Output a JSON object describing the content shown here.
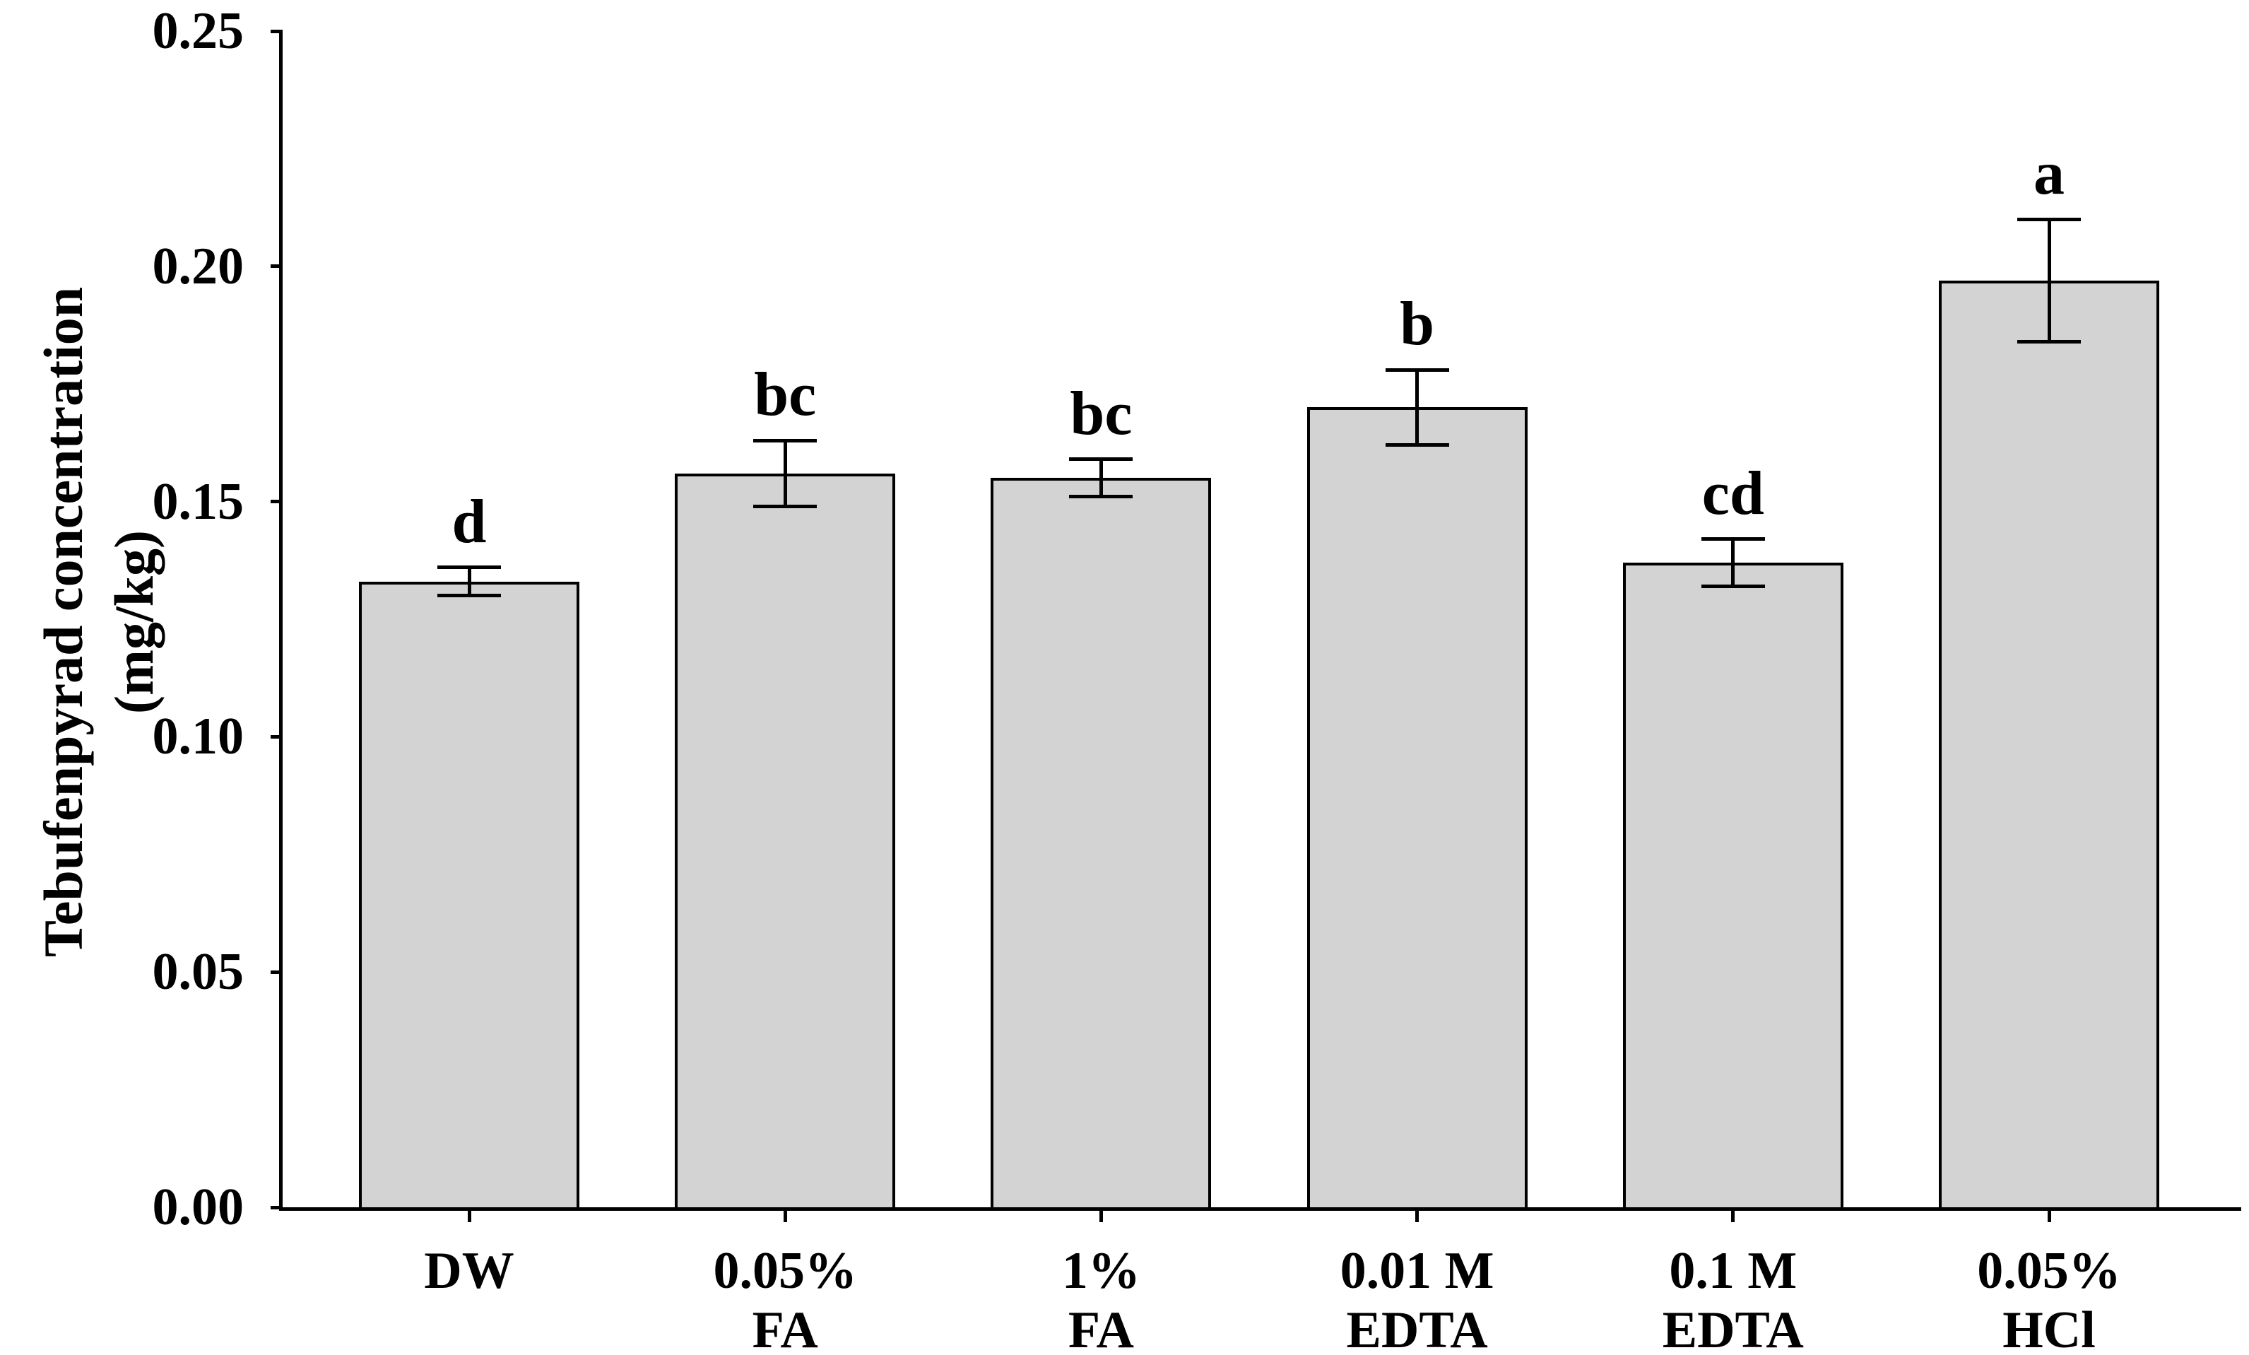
{
  "chart_data": {
    "type": "bar",
    "title": "",
    "xlabel": "",
    "ylabel": "Tebufenpyrad concentration\n(mg/kg)",
    "categories": [
      "DW",
      "0.05%\nFA",
      "1%\nFA",
      "0.01 M\nEDTA",
      "0.1 M\nEDTA",
      "0.05%\nHCl"
    ],
    "values": [
      0.133,
      0.156,
      0.155,
      0.17,
      0.137,
      0.197
    ],
    "errors": [
      0.003,
      0.007,
      0.004,
      0.008,
      0.005,
      0.013
    ],
    "sig_letters": [
      "d",
      "bc",
      "bc",
      "b",
      "cd",
      "a"
    ],
    "yticks": [
      0.0,
      0.05,
      0.1,
      0.15,
      0.2,
      0.25
    ],
    "ytick_labels": [
      "0.00",
      "0.05",
      "0.10",
      "0.15",
      "0.20",
      "0.25"
    ],
    "ylim": [
      0,
      0.25
    ],
    "grid": false,
    "legend": null,
    "bar_fill_color": "#d3d3d3",
    "bar_edge_color": "#000000",
    "error_bar_color": "#000000"
  }
}
